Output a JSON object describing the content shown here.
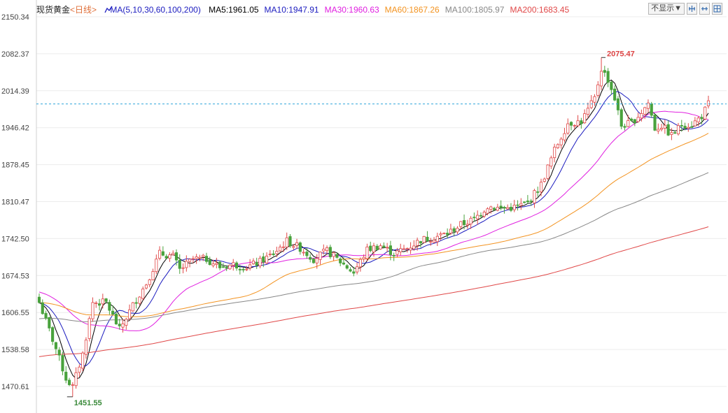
{
  "header": {
    "instrument": "现货黄金",
    "period": "<日线>",
    "ma_params": "MA(5,10,30,60,100,200)",
    "ma_values": [
      {
        "label": "MA5:1961.05",
        "color": "#000000"
      },
      {
        "label": "MA10:1947.91",
        "color": "#1b1bbf"
      },
      {
        "label": "MA30:1960.63",
        "color": "#e020e0"
      },
      {
        "label": "MA60:1867.26",
        "color": "#f39320"
      },
      {
        "label": "MA100:1805.97",
        "color": "#888888"
      },
      {
        "label": "MA200:1683.45",
        "color": "#e04848"
      }
    ]
  },
  "toolbar": {
    "hide_label": "不显示▼",
    "icons": [
      "zoom-in-icon",
      "zoom-out-icon",
      "grid-icon"
    ]
  },
  "colors": {
    "up": "#e04848",
    "down": "#49a23d",
    "grid": "#ececec",
    "price_line": "#2aa3d9"
  },
  "chart_data": {
    "type": "candlestick",
    "y_ticks": [
      "2150.34",
      "2082.37",
      "2014.39",
      "1946.42",
      "1878.45",
      "1810.47",
      "1742.50",
      "1674.53",
      "1606.55",
      "1538.58",
      "1470.61"
    ],
    "ylim": [
      1440,
      2160
    ],
    "annotations": {
      "high": "2075.47",
      "low": "1451.55"
    },
    "current_price_line": 1990,
    "anchors": [
      [
        0,
        1625
      ],
      [
        5,
        1540
      ],
      [
        8,
        1485
      ],
      [
        10,
        1470
      ],
      [
        13,
        1530
      ],
      [
        16,
        1625
      ],
      [
        20,
        1625
      ],
      [
        24,
        1575
      ],
      [
        28,
        1620
      ],
      [
        32,
        1660
      ],
      [
        36,
        1715
      ],
      [
        40,
        1710
      ],
      [
        42,
        1685
      ],
      [
        46,
        1705
      ],
      [
        50,
        1705
      ],
      [
        54,
        1690
      ],
      [
        58,
        1695
      ],
      [
        62,
        1690
      ],
      [
        66,
        1700
      ],
      [
        70,
        1715
      ],
      [
        74,
        1738
      ],
      [
        78,
        1725
      ],
      [
        82,
        1705
      ],
      [
        86,
        1720
      ],
      [
        90,
        1700
      ],
      [
        94,
        1680
      ],
      [
        98,
        1722
      ],
      [
        102,
        1730
      ],
      [
        106,
        1715
      ],
      [
        110,
        1725
      ],
      [
        114,
        1740
      ],
      [
        118,
        1745
      ],
      [
        122,
        1752
      ],
      [
        126,
        1768
      ],
      [
        130,
        1778
      ],
      [
        134,
        1802
      ],
      [
        138,
        1798
      ],
      [
        142,
        1800
      ],
      [
        146,
        1808
      ],
      [
        150,
        1842
      ],
      [
        154,
        1905
      ],
      [
        158,
        1955
      ],
      [
        162,
        1958
      ],
      [
        166,
        2000
      ],
      [
        168,
        2055
      ],
      [
        170,
        2035
      ],
      [
        172,
        2000
      ],
      [
        174,
        1950
      ],
      [
        177,
        1955
      ],
      [
        180,
        1975
      ],
      [
        182,
        1992
      ],
      [
        184,
        1945
      ],
      [
        186,
        1950
      ],
      [
        189,
        1932
      ],
      [
        192,
        1952
      ],
      [
        195,
        1952
      ],
      [
        198,
        1968
      ],
      [
        200,
        1990
      ]
    ]
  }
}
